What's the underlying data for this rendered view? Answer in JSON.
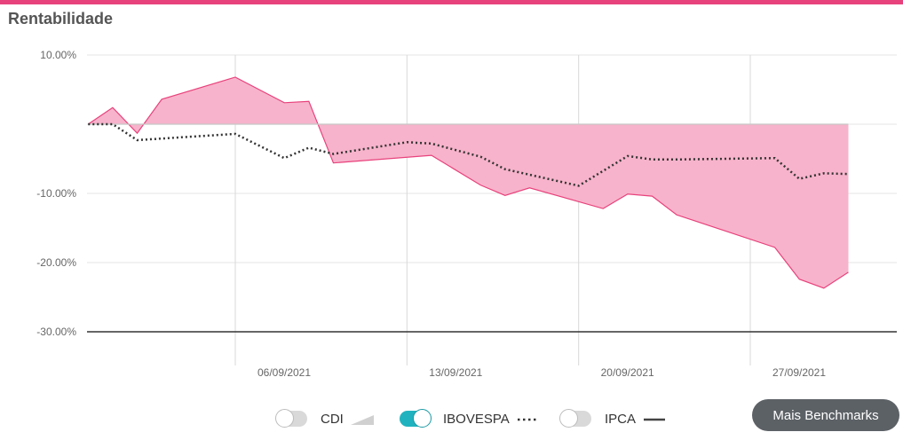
{
  "header": {
    "title": "Rentabilidade"
  },
  "chart_data": {
    "type": "area",
    "ylim": [
      -30,
      10
    ],
    "y_ticks": [
      10,
      -10,
      -20,
      -30
    ],
    "y_tick_labels": [
      "10.00%",
      "-10.00%",
      "-20.00%",
      "-30.00%"
    ],
    "x_tick_labels": [
      "06/09/2021",
      "13/09/2021",
      "20/09/2021",
      "27/09/2021"
    ],
    "grid": true,
    "series": [
      {
        "name": "CDI",
        "style": "filled-area",
        "color": "#e8427c",
        "fill": "#f7b3cb",
        "x": [
          "2021-08-31",
          "2021-09-01",
          "2021-09-02",
          "2021-09-03",
          "2021-09-06",
          "2021-09-08",
          "2021-09-09",
          "2021-09-10",
          "2021-09-14",
          "2021-09-16",
          "2021-09-17",
          "2021-09-18",
          "2021-09-21",
          "2021-09-22",
          "2021-09-23",
          "2021-09-24",
          "2021-09-28",
          "2021-09-29",
          "2021-09-30",
          "2021-10-01"
        ],
        "values": [
          0,
          2.4,
          -1.3,
          3.6,
          6.8,
          3.1,
          3.3,
          -5.6,
          -4.5,
          -8.8,
          -10.3,
          -9.2,
          -12.2,
          -10.1,
          -10.4,
          -13.1,
          -17.8,
          -22.4,
          -23.7,
          -21.4
        ]
      },
      {
        "name": "IBOVESPA",
        "style": "dotted",
        "color": "#333333",
        "x": [
          "2021-08-31",
          "2021-09-01",
          "2021-09-02",
          "2021-09-06",
          "2021-09-08",
          "2021-09-09",
          "2021-09-10",
          "2021-09-13",
          "2021-09-14",
          "2021-09-16",
          "2021-09-17",
          "2021-09-20",
          "2021-09-22",
          "2021-09-23",
          "2021-09-24",
          "2021-09-28",
          "2021-09-29",
          "2021-09-30",
          "2021-10-01"
        ],
        "values": [
          0,
          0,
          -2.3,
          -1.4,
          -4.9,
          -3.4,
          -4.3,
          -2.6,
          -2.8,
          -4.7,
          -6.5,
          -8.9,
          -4.6,
          -5.1,
          -5.1,
          -4.9,
          -7.9,
          -7.1,
          -7.2
        ]
      }
    ]
  },
  "legend": [
    {
      "label": "CDI",
      "toggle_on": false,
      "symbol": "area"
    },
    {
      "label": "IBOVESPA",
      "toggle_on": true,
      "symbol": "dotted"
    },
    {
      "label": "IPCA",
      "toggle_on": false,
      "symbol": "line"
    }
  ],
  "actions": {
    "more_benchmarks_label": "Mais Benchmarks"
  },
  "colors": {
    "accent": "#e8427c",
    "toggle_on": "#20b3bf",
    "button_bg": "#5c6166"
  }
}
